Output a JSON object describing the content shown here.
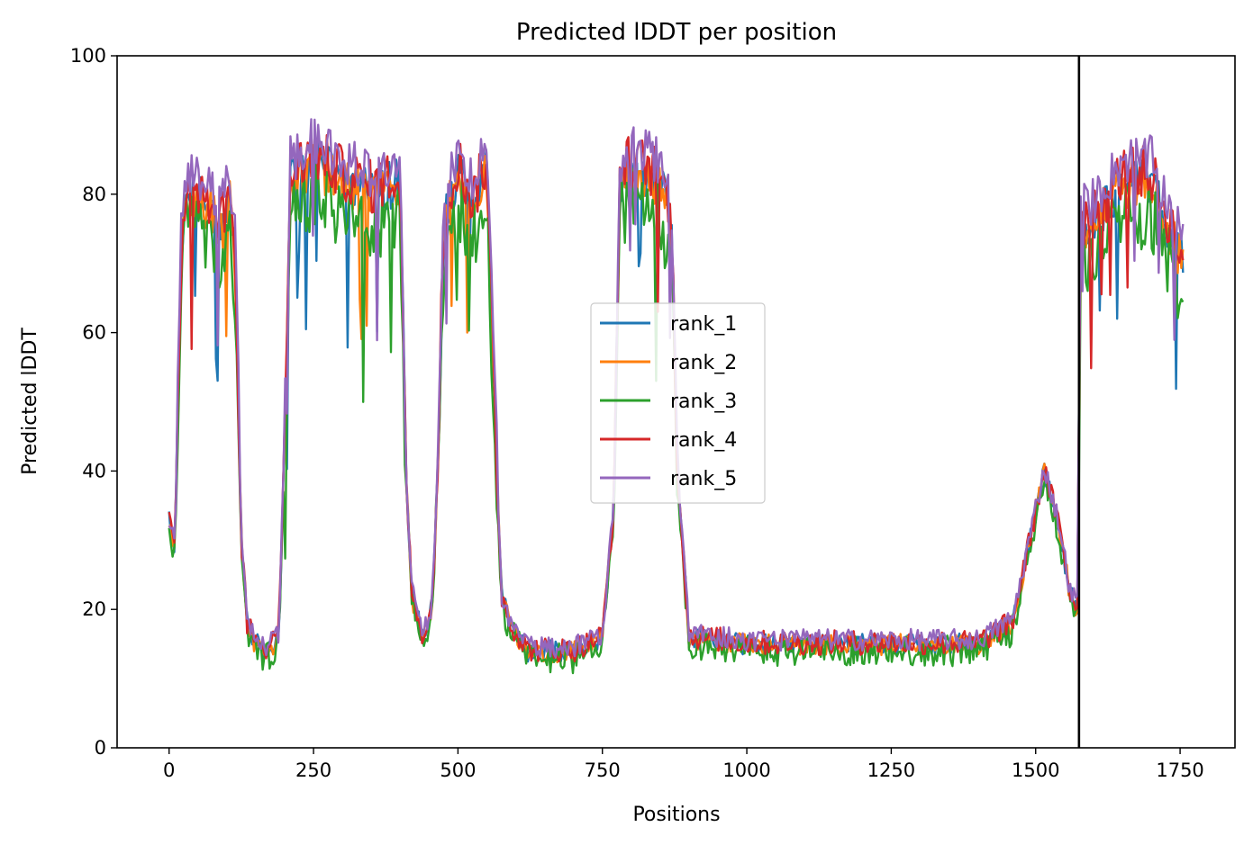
{
  "chart_data": {
    "type": "line",
    "title": "Predicted lDDT per position",
    "xlabel": "Positions",
    "ylabel": "Predicted lDDT",
    "xlim": [
      -90,
      1845
    ],
    "ylim": [
      0,
      100
    ],
    "xticks": [
      0,
      250,
      500,
      750,
      1000,
      1250,
      1500,
      1750
    ],
    "yticks": [
      0,
      20,
      40,
      60,
      80,
      100
    ],
    "legend_position": "center",
    "vline_x": 1575,
    "vline_color": "#000000",
    "series": [
      {
        "name": "rank_1",
        "color": "#1f77b4",
        "offset": 0.0,
        "noise": 3.5
      },
      {
        "name": "rank_2",
        "color": "#ff7f0e",
        "offset": -0.5,
        "noise": 3.5
      },
      {
        "name": "rank_3",
        "color": "#2ca02c",
        "offset": -5.0,
        "noise": 5.0
      },
      {
        "name": "rank_4",
        "color": "#d62728",
        "offset": 1.0,
        "noise": 4.0
      },
      {
        "name": "rank_5",
        "color": "#9467bd",
        "offset": 3.0,
        "noise": 3.5
      }
    ],
    "profile_x": [
      0,
      10,
      20,
      30,
      50,
      70,
      90,
      105,
      115,
      125,
      135,
      150,
      170,
      190,
      200,
      210,
      250,
      300,
      350,
      400,
      410,
      420,
      440,
      455,
      465,
      475,
      500,
      525,
      550,
      565,
      575,
      590,
      620,
      700,
      750,
      770,
      780,
      800,
      850,
      870,
      880,
      900,
      1000,
      1200,
      1400,
      1460,
      1490,
      1515,
      1540,
      1560,
      1574,
      1576,
      1600,
      1650,
      1700,
      1755
    ],
    "profile_y": [
      33,
      28,
      70,
      80,
      80,
      78,
      75,
      80,
      70,
      30,
      18,
      15,
      14,
      16,
      45,
      82,
      85,
      82,
      80,
      82,
      40,
      22,
      16,
      20,
      40,
      75,
      84,
      78,
      84,
      45,
      22,
      18,
      14,
      14,
      16,
      35,
      82,
      84,
      82,
      75,
      40,
      16,
      15,
      15,
      15,
      18,
      30,
      40,
      32,
      22,
      20,
      75,
      76,
      82,
      82,
      70
    ]
  },
  "legend": {
    "entries": [
      "rank_1",
      "rank_2",
      "rank_3",
      "rank_4",
      "rank_5"
    ]
  }
}
